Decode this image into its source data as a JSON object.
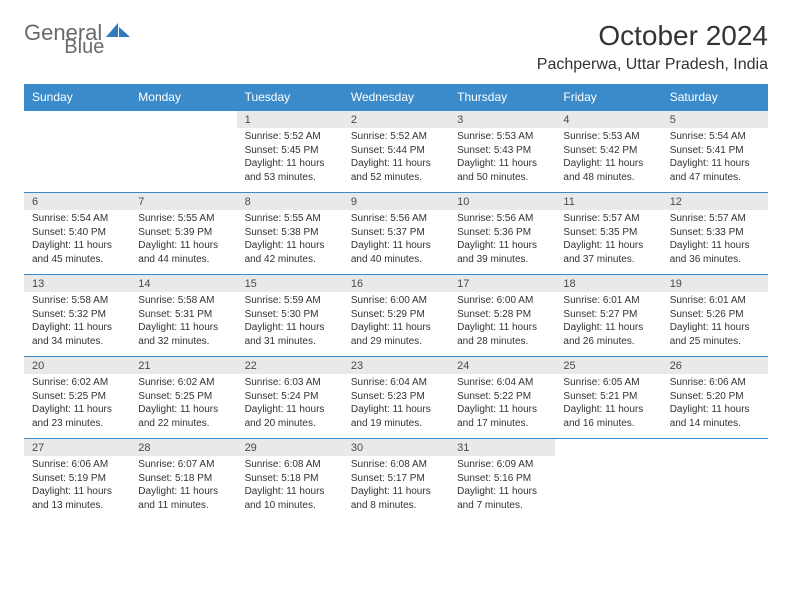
{
  "brand": {
    "name": "General",
    "nameSuffix": "Blue"
  },
  "title": "October 2024",
  "location": "Pachperwa, Uttar Pradesh, India",
  "colors": {
    "header_bg": "#3b8bca",
    "header_text": "#ffffff",
    "daynum_bg": "#e9e9e9",
    "body_bg": "#ffffff",
    "text": "#333333",
    "logo_text": "#6a6a6a",
    "logo_icon": "#2f79bd"
  },
  "days_of_week": [
    "Sunday",
    "Monday",
    "Tuesday",
    "Wednesday",
    "Thursday",
    "Friday",
    "Saturday"
  ],
  "weeks": [
    [
      null,
      null,
      {
        "n": "1",
        "sr": "5:52 AM",
        "ss": "5:45 PM",
        "dl": "11 hours and 53 minutes."
      },
      {
        "n": "2",
        "sr": "5:52 AM",
        "ss": "5:44 PM",
        "dl": "11 hours and 52 minutes."
      },
      {
        "n": "3",
        "sr": "5:53 AM",
        "ss": "5:43 PM",
        "dl": "11 hours and 50 minutes."
      },
      {
        "n": "4",
        "sr": "5:53 AM",
        "ss": "5:42 PM",
        "dl": "11 hours and 48 minutes."
      },
      {
        "n": "5",
        "sr": "5:54 AM",
        "ss": "5:41 PM",
        "dl": "11 hours and 47 minutes."
      }
    ],
    [
      {
        "n": "6",
        "sr": "5:54 AM",
        "ss": "5:40 PM",
        "dl": "11 hours and 45 minutes."
      },
      {
        "n": "7",
        "sr": "5:55 AM",
        "ss": "5:39 PM",
        "dl": "11 hours and 44 minutes."
      },
      {
        "n": "8",
        "sr": "5:55 AM",
        "ss": "5:38 PM",
        "dl": "11 hours and 42 minutes."
      },
      {
        "n": "9",
        "sr": "5:56 AM",
        "ss": "5:37 PM",
        "dl": "11 hours and 40 minutes."
      },
      {
        "n": "10",
        "sr": "5:56 AM",
        "ss": "5:36 PM",
        "dl": "11 hours and 39 minutes."
      },
      {
        "n": "11",
        "sr": "5:57 AM",
        "ss": "5:35 PM",
        "dl": "11 hours and 37 minutes."
      },
      {
        "n": "12",
        "sr": "5:57 AM",
        "ss": "5:33 PM",
        "dl": "11 hours and 36 minutes."
      }
    ],
    [
      {
        "n": "13",
        "sr": "5:58 AM",
        "ss": "5:32 PM",
        "dl": "11 hours and 34 minutes."
      },
      {
        "n": "14",
        "sr": "5:58 AM",
        "ss": "5:31 PM",
        "dl": "11 hours and 32 minutes."
      },
      {
        "n": "15",
        "sr": "5:59 AM",
        "ss": "5:30 PM",
        "dl": "11 hours and 31 minutes."
      },
      {
        "n": "16",
        "sr": "6:00 AM",
        "ss": "5:29 PM",
        "dl": "11 hours and 29 minutes."
      },
      {
        "n": "17",
        "sr": "6:00 AM",
        "ss": "5:28 PM",
        "dl": "11 hours and 28 minutes."
      },
      {
        "n": "18",
        "sr": "6:01 AM",
        "ss": "5:27 PM",
        "dl": "11 hours and 26 minutes."
      },
      {
        "n": "19",
        "sr": "6:01 AM",
        "ss": "5:26 PM",
        "dl": "11 hours and 25 minutes."
      }
    ],
    [
      {
        "n": "20",
        "sr": "6:02 AM",
        "ss": "5:25 PM",
        "dl": "11 hours and 23 minutes."
      },
      {
        "n": "21",
        "sr": "6:02 AM",
        "ss": "5:25 PM",
        "dl": "11 hours and 22 minutes."
      },
      {
        "n": "22",
        "sr": "6:03 AM",
        "ss": "5:24 PM",
        "dl": "11 hours and 20 minutes."
      },
      {
        "n": "23",
        "sr": "6:04 AM",
        "ss": "5:23 PM",
        "dl": "11 hours and 19 minutes."
      },
      {
        "n": "24",
        "sr": "6:04 AM",
        "ss": "5:22 PM",
        "dl": "11 hours and 17 minutes."
      },
      {
        "n": "25",
        "sr": "6:05 AM",
        "ss": "5:21 PM",
        "dl": "11 hours and 16 minutes."
      },
      {
        "n": "26",
        "sr": "6:06 AM",
        "ss": "5:20 PM",
        "dl": "11 hours and 14 minutes."
      }
    ],
    [
      {
        "n": "27",
        "sr": "6:06 AM",
        "ss": "5:19 PM",
        "dl": "11 hours and 13 minutes."
      },
      {
        "n": "28",
        "sr": "6:07 AM",
        "ss": "5:18 PM",
        "dl": "11 hours and 11 minutes."
      },
      {
        "n": "29",
        "sr": "6:08 AM",
        "ss": "5:18 PM",
        "dl": "11 hours and 10 minutes."
      },
      {
        "n": "30",
        "sr": "6:08 AM",
        "ss": "5:17 PM",
        "dl": "11 hours and 8 minutes."
      },
      {
        "n": "31",
        "sr": "6:09 AM",
        "ss": "5:16 PM",
        "dl": "11 hours and 7 minutes."
      },
      null,
      null
    ]
  ],
  "labels": {
    "sunrise": "Sunrise:",
    "sunset": "Sunset:",
    "daylight": "Daylight:"
  }
}
